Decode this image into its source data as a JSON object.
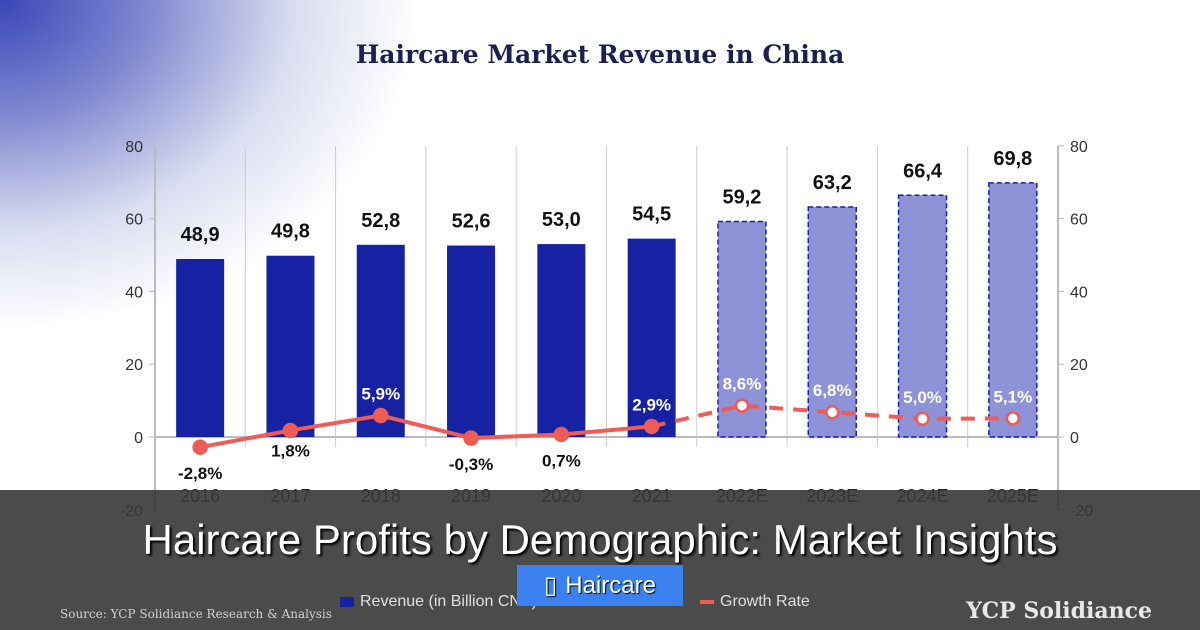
{
  "chart_data": {
    "type": "bar",
    "title": "Haircare Market Revenue in China",
    "categories": [
      "2016",
      "2017",
      "2018",
      "2019",
      "2020",
      "2021",
      "2022E",
      "2023E",
      "2024E",
      "2025E"
    ],
    "series": [
      {
        "name": "Revenue (in Billion CNY)",
        "type": "bar",
        "values": [
          48.9,
          49.8,
          52.8,
          52.6,
          53.0,
          54.5,
          59.2,
          63.2,
          66.4,
          69.8
        ],
        "labels": [
          "48,9",
          "49,8",
          "52,8",
          "52,6",
          "53,0",
          "54,5",
          "59,2",
          "63,2",
          "66,4",
          "69,8"
        ],
        "forecast_from": "2022E"
      },
      {
        "name": "Growth Rate",
        "type": "line",
        "values": [
          -2.8,
          1.8,
          5.9,
          -0.3,
          0.7,
          2.9,
          8.6,
          6.8,
          5.0,
          5.1
        ],
        "labels": [
          "-2,8%",
          "1,8%",
          "5,9%",
          "-0,3%",
          "0,7%",
          "2,9%",
          "8,6%",
          "6,8%",
          "5,0%",
          "5,1%"
        ]
      }
    ],
    "ylim": [
      -20,
      80
    ],
    "yticks": [
      "-20",
      "0",
      "20",
      "40",
      "60",
      "80"
    ],
    "y2ticks": [
      "-20",
      "0",
      "20",
      "40",
      "60",
      "80"
    ],
    "colors": {
      "bar": "#1621a3",
      "bar_forecast": "#8d93d6",
      "line": "#ef5b55"
    },
    "legend_position": "bottom"
  },
  "source": "Source: YCP Solidiance Research & Analysis",
  "logo": "YCP Solidiance",
  "headline": "Haircare Profits by Demographic: Market Insights",
  "tag": {
    "icon": "tag-icon",
    "label": "Haircare"
  }
}
